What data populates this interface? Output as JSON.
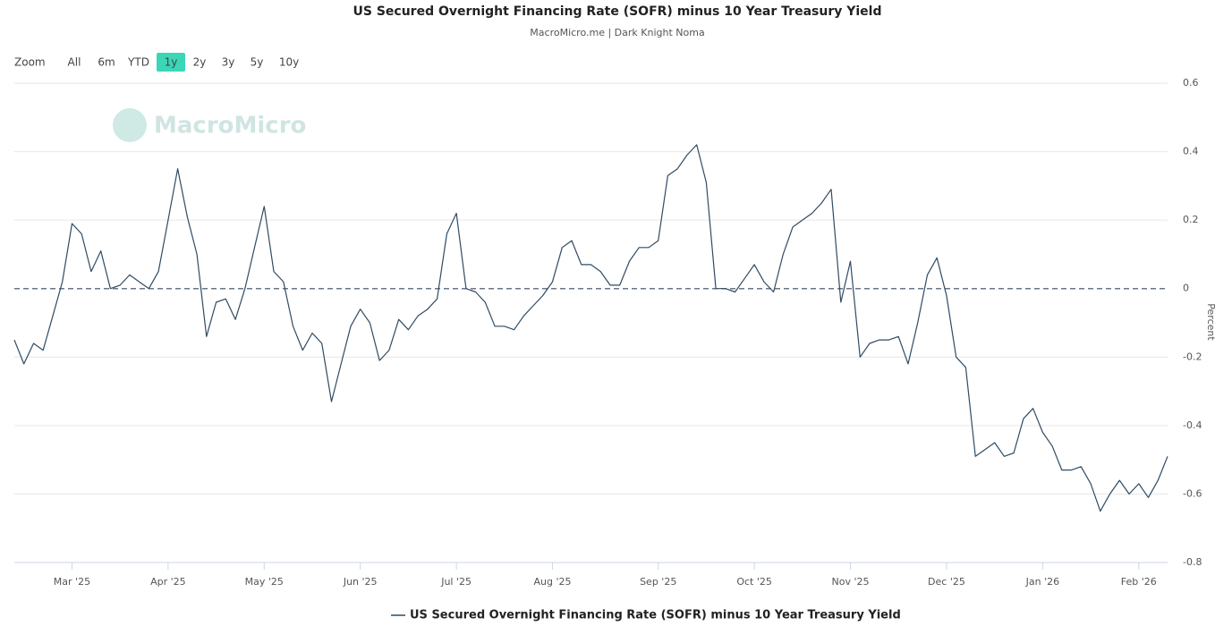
{
  "chart_data": {
    "type": "line",
    "title": "US Secured Overnight Financing Rate (SOFR) minus 10 Year Treasury Yield",
    "subtitle": "MacroMicro.me | Dark Knight Noma",
    "watermark": "MacroMicro",
    "range_selector": {
      "label": "Zoom",
      "buttons": [
        "All",
        "6m",
        "YTD",
        "1y",
        "2y",
        "3y",
        "5y",
        "10y"
      ],
      "active": 3,
      "disabled": 7
    },
    "y_axis_label": "Percent",
    "categories": [
      null,
      null,
      null,
      null,
      null,
      null,
      "Mar '25",
      null,
      null,
      null,
      null,
      null,
      null,
      null,
      null,
      null,
      "Apr '25",
      null,
      null,
      null,
      null,
      null,
      null,
      null,
      null,
      null,
      "May '25",
      null,
      null,
      null,
      null,
      null,
      null,
      null,
      null,
      null,
      "Jun '25",
      null,
      null,
      null,
      null,
      null,
      null,
      null,
      null,
      null,
      "Jul '25",
      null,
      null,
      null,
      null,
      null,
      null,
      null,
      null,
      null,
      "Aug '25",
      null,
      null,
      null,
      null,
      null,
      null,
      null,
      null,
      null,
      null,
      "Sep '25",
      null,
      null,
      null,
      null,
      null,
      null,
      null,
      null,
      null,
      "Oct '25",
      null,
      null,
      null,
      null,
      null,
      null,
      null,
      null,
      null,
      "Nov '25",
      null,
      null,
      null,
      null,
      null,
      null,
      null,
      null,
      null,
      "Dec '25",
      null,
      null,
      null,
      null,
      null,
      null,
      null,
      null,
      null,
      "Jan '26",
      null,
      null,
      null,
      null,
      null,
      null,
      null,
      null,
      null,
      "Feb '26",
      null,
      null,
      null
    ],
    "series": [
      {
        "name": "US Secured Overnight Financing Rate (SOFR) minus 10 Year Treasury Yield",
        "color": "#2f4b63",
        "values": [
          -0.15,
          -0.22,
          -0.16,
          -0.18,
          -0.08,
          0.02,
          0.19,
          0.16,
          0.05,
          0.11,
          0.0,
          0.01,
          0.04,
          0.02,
          0.0,
          0.05,
          0.2,
          0.35,
          0.21,
          0.1,
          -0.14,
          -0.04,
          -0.03,
          -0.09,
          0.0,
          0.12,
          0.24,
          0.05,
          0.02,
          -0.11,
          -0.18,
          -0.13,
          -0.16,
          -0.33,
          -0.22,
          -0.11,
          -0.06,
          -0.1,
          -0.21,
          -0.18,
          -0.09,
          -0.12,
          -0.08,
          -0.06,
          -0.03,
          0.16,
          0.22,
          0.0,
          -0.01,
          -0.04,
          -0.11,
          -0.11,
          -0.12,
          -0.08,
          -0.05,
          -0.02,
          0.02,
          0.12,
          0.14,
          0.07,
          0.07,
          0.05,
          0.01,
          0.01,
          0.08,
          0.12,
          0.12,
          0.14,
          0.33,
          0.35,
          0.39,
          0.42,
          0.31,
          0.0,
          0.0,
          -0.01,
          0.03,
          0.07,
          0.02,
          -0.01,
          0.1,
          0.18,
          0.2,
          0.22,
          0.25,
          0.29,
          -0.04,
          0.08,
          -0.2,
          -0.16,
          -0.15,
          -0.15,
          -0.14,
          -0.22,
          -0.1,
          0.04,
          0.09,
          -0.02,
          -0.2,
          -0.23,
          -0.49,
          -0.47,
          -0.45,
          -0.49,
          -0.48,
          -0.38,
          -0.35,
          -0.42,
          -0.46,
          -0.53,
          -0.53,
          -0.52,
          -0.57,
          -0.65,
          -0.6,
          -0.56,
          -0.6,
          -0.57,
          -0.61,
          -0.56,
          -0.49
        ]
      }
    ],
    "ylim": [
      -0.8,
      0.6
    ],
    "yticks": [
      -0.8,
      -0.6,
      -0.4,
      -0.2,
      0,
      0.2,
      0.4,
      0.6
    ],
    "grid": true,
    "zero_line": "dashed",
    "legend": "bottom"
  }
}
